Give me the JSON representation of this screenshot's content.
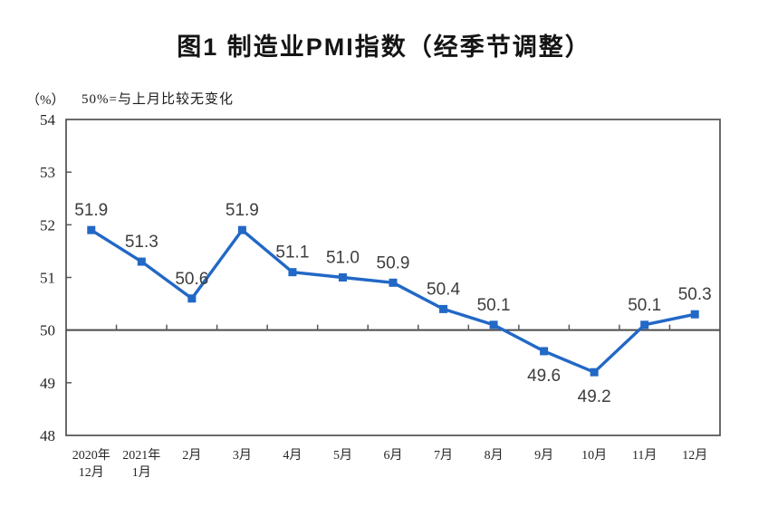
{
  "chart_data": {
    "type": "line",
    "title": "图1 制造业PMI指数（经季节调整）",
    "unit_label": "（%）",
    "annotation": "50%=与上月比较无变化",
    "categories": [
      "2020年\n12月",
      "2021年\n1月",
      "2月",
      "3月",
      "4月",
      "5月",
      "6月",
      "7月",
      "8月",
      "9月",
      "10月",
      "11月",
      "12月"
    ],
    "series": [
      {
        "values": [
          51.9,
          51.3,
          50.6,
          51.9,
          51.1,
          51.0,
          50.9,
          50.4,
          50.1,
          49.6,
          49.2,
          50.1,
          50.3
        ],
        "data_labels": [
          "51.9",
          "51.3",
          "50.6",
          "51.9",
          "51.1",
          "51.0",
          "50.9",
          "50.4",
          "50.1",
          "49.6",
          "49.2",
          "50.1",
          "50.3"
        ],
        "label_positions": [
          "above",
          "above",
          "above",
          "above",
          "above",
          "above",
          "above",
          "above",
          "above",
          "below",
          "below",
          "above",
          "above"
        ],
        "marker": "square"
      }
    ],
    "ylim": [
      48,
      54
    ],
    "yticks": [
      54,
      53,
      52,
      51,
      50,
      49,
      48
    ],
    "reference_line": 50,
    "grid": false,
    "legend": false,
    "colors": {
      "line": "#2268C6",
      "plot_border": "#595959",
      "reference_line": "#4A4A4A",
      "tick": "#595959",
      "axis_text": "#262626",
      "data_label_text": "#3D3D3D"
    }
  }
}
